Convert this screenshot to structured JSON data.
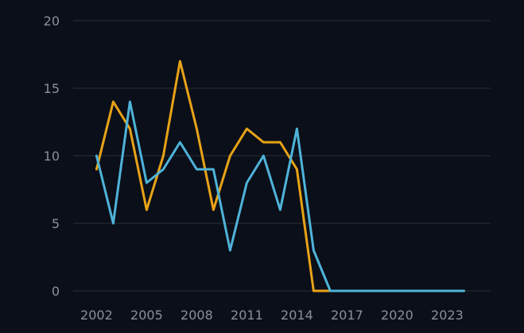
{
  "chart_data": {
    "type": "line",
    "title": "",
    "xlabel": "",
    "ylabel": "",
    "x": [
      2002,
      2003,
      2004,
      2005,
      2006,
      2007,
      2008,
      2009,
      2010,
      2011,
      2012,
      2013,
      2014,
      2015,
      2016,
      2017,
      2018,
      2019,
      2020,
      2021,
      2022,
      2023,
      2024
    ],
    "xticks": [
      "2002",
      "2005",
      "2008",
      "2011",
      "2014",
      "2017",
      "2020",
      "2023"
    ],
    "yticks": [
      "0",
      "5",
      "10",
      "15",
      "20"
    ],
    "ylim": [
      0,
      20
    ],
    "xlim": [
      2000.6,
      2025.6
    ],
    "grid": "horizontal",
    "legend": "none",
    "series": [
      {
        "color": "#e8a317",
        "values": [
          9,
          14,
          12,
          6,
          10,
          17,
          12,
          6,
          10,
          12,
          11,
          11,
          9,
          0,
          0,
          0,
          0,
          0,
          0,
          0,
          0,
          0,
          0
        ]
      },
      {
        "color": "#4fb3d9",
        "values": [
          10,
          5,
          14,
          8,
          9,
          11,
          9,
          9,
          3,
          8,
          10,
          6,
          12,
          3,
          0,
          0,
          0,
          0,
          0,
          0,
          0,
          0,
          0
        ]
      }
    ]
  }
}
